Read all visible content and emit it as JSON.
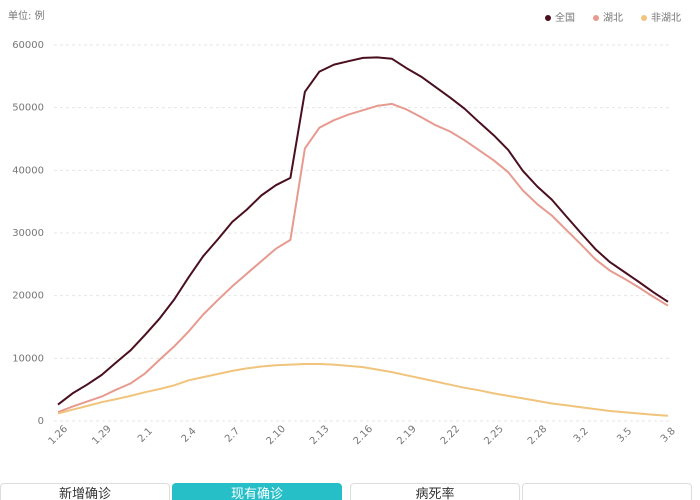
{
  "chart_data": {
    "type": "line",
    "y_label": "单位: 例",
    "categories": [
      "1.26",
      null,
      null,
      "1.29",
      null,
      null,
      "2.1",
      null,
      null,
      "2.4",
      null,
      null,
      "2.7",
      null,
      null,
      "2.10",
      null,
      null,
      "2.13",
      null,
      null,
      "2.16",
      null,
      null,
      "2.19",
      null,
      null,
      "2.22",
      null,
      null,
      "2.25",
      null,
      null,
      "2.28",
      null,
      null,
      "3.2",
      null,
      null,
      "3.5",
      null,
      null,
      "3.8"
    ],
    "series": [
      {
        "name": "全国",
        "color": "#4a0f1f",
        "values": [
          2616,
          4409,
          5794,
          7333,
          9334,
          11289,
          13748,
          16369,
          19381,
          22942,
          26302,
          28985,
          31774,
          33738,
          35982,
          37626,
          38800,
          52526,
          55748,
          56873,
          57416,
          57934,
          58016,
          57805,
          56303,
          54965,
          53284,
          51606,
          49824,
          47672,
          45604,
          43258,
          39919,
          37414,
          35329,
          32652,
          30004,
          27433,
          25352,
          23784,
          22177,
          20533,
          19016
        ]
      },
      {
        "name": "湖北",
        "color": "#e79a8f",
        "values": [
          1400,
          2300,
          3100,
          3900,
          5000,
          6000,
          7600,
          9800,
          11900,
          14300,
          17000,
          19300,
          21500,
          23500,
          25500,
          27500,
          28900,
          43500,
          46800,
          48000,
          48900,
          49600,
          50300,
          50600,
          49700,
          48500,
          47200,
          46200,
          44800,
          43200,
          41600,
          39700,
          36800,
          34600,
          32800,
          30500,
          28200,
          25800,
          24000,
          22700,
          21300,
          19800,
          18400
        ]
      },
      {
        "name": "非湖北",
        "color": "#f0c47c",
        "values": [
          1200,
          1800,
          2400,
          3000,
          3500,
          4000,
          4600,
          5100,
          5700,
          6500,
          7000,
          7500,
          8000,
          8400,
          8700,
          8900,
          9000,
          9100,
          9100,
          9000,
          8800,
          8600,
          8200,
          7800,
          7300,
          6800,
          6300,
          5800,
          5300,
          4900,
          4400,
          4000,
          3600,
          3200,
          2800,
          2500,
          2200,
          1900,
          1600,
          1400,
          1200,
          1000,
          850
        ]
      }
    ],
    "ylim": [
      0,
      60000
    ],
    "yticks": [
      0,
      10000,
      20000,
      30000,
      40000,
      50000,
      60000
    ],
    "grid": true,
    "legend": "top-right"
  },
  "tabs": [
    "新增确诊",
    "现有确诊",
    "病死率"
  ],
  "active_tab": 1
}
